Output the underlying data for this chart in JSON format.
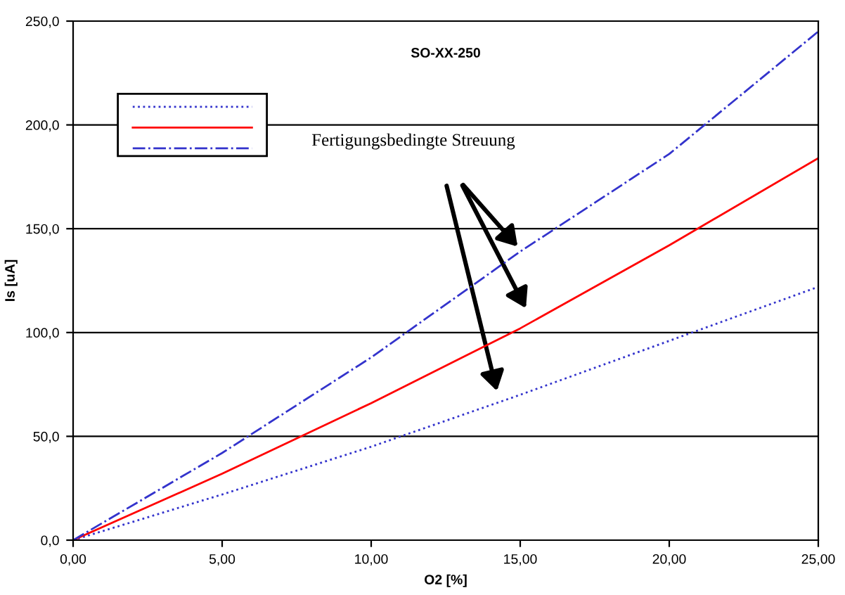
{
  "chart_data": {
    "type": "line",
    "title": "SO-XX-250",
    "xlabel": "O2 [%]",
    "ylabel": "Is [uA]",
    "annotations": [
      "Fertigungsbedingte Streuung"
    ],
    "x": [
      0,
      5,
      10,
      15,
      20,
      25
    ],
    "series": [
      {
        "color": "#3333cc",
        "line_style": "dotted",
        "values": [
          0,
          22,
          45,
          70,
          96,
          122
        ]
      },
      {
        "color": "#ff0000",
        "line_style": "solid",
        "values": [
          0,
          32,
          66,
          102,
          142,
          184
        ]
      },
      {
        "color": "#3333cc",
        "line_style": "dashdot",
        "values": [
          0,
          42,
          88,
          139,
          186,
          245
        ]
      }
    ],
    "xlim": [
      0,
      25
    ],
    "ylim": [
      0,
      250
    ],
    "xticks": [
      {
        "value": 0,
        "label": "0,00"
      },
      {
        "value": 5,
        "label": "5,00"
      },
      {
        "value": 10,
        "label": "10,00"
      },
      {
        "value": 15,
        "label": "15,00"
      },
      {
        "value": 20,
        "label": "20,00"
      },
      {
        "value": 25,
        "label": "25,00"
      }
    ],
    "yticks": [
      {
        "value": 0,
        "label": "0,0"
      },
      {
        "value": 50,
        "label": "50,0"
      },
      {
        "value": 100,
        "label": "100,0"
      },
      {
        "value": 150,
        "label": "150,0"
      },
      {
        "value": 200,
        "label": "200,0"
      },
      {
        "value": 250,
        "label": "250,0"
      }
    ],
    "grid": "y",
    "marker": "none"
  }
}
